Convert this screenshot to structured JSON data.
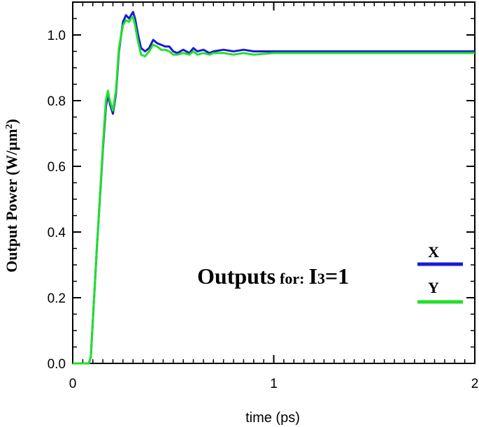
{
  "chart_data": {
    "type": "line",
    "title": "",
    "xlabel": "time (ps)",
    "ylabel_main": "Output Power (W/",
    "ylabel_unit": "µm",
    "ylabel_sup": "2",
    "ylabel_close": ")",
    "xlim": [
      0,
      2
    ],
    "ylim": [
      0,
      1.1
    ],
    "xticks": [
      "0",
      "1",
      "2"
    ],
    "yticks": [
      "0.0",
      "0.2",
      "0.4",
      "0.6",
      "0.8",
      "1.0"
    ],
    "grid": false,
    "legend_position": "right",
    "annotation": {
      "prefix": "Outputs",
      "middle": "for:",
      "var": "I",
      "sub": "3",
      "suffix": "=1"
    },
    "series": [
      {
        "name": "X",
        "color": "#1a1ad6",
        "x": [
          0,
          0.08,
          0.09,
          0.12,
          0.15,
          0.165,
          0.175,
          0.185,
          0.2,
          0.215,
          0.23,
          0.25,
          0.265,
          0.28,
          0.29,
          0.3,
          0.31,
          0.325,
          0.34,
          0.36,
          0.38,
          0.4,
          0.42,
          0.44,
          0.46,
          0.48,
          0.5,
          0.52,
          0.55,
          0.58,
          0.6,
          0.62,
          0.65,
          0.68,
          0.7,
          0.75,
          0.8,
          0.85,
          0.9,
          1.0,
          1.1,
          1.2,
          1.3,
          1.4,
          1.5,
          1.6,
          1.7,
          1.8,
          1.9,
          2.0
        ],
        "y": [
          0,
          0,
          0.02,
          0.35,
          0.65,
          0.78,
          0.82,
          0.79,
          0.76,
          0.82,
          0.95,
          1.04,
          1.06,
          1.05,
          1.06,
          1.07,
          1.05,
          1.0,
          0.96,
          0.95,
          0.96,
          0.985,
          0.975,
          0.97,
          0.965,
          0.965,
          0.95,
          0.945,
          0.955,
          0.945,
          0.96,
          0.95,
          0.955,
          0.945,
          0.95,
          0.955,
          0.95,
          0.955,
          0.95,
          0.95,
          0.95,
          0.95,
          0.95,
          0.95,
          0.95,
          0.95,
          0.95,
          0.95,
          0.95,
          0.95
        ]
      },
      {
        "name": "Y",
        "color": "#22e02a",
        "x": [
          0,
          0.08,
          0.09,
          0.12,
          0.15,
          0.165,
          0.175,
          0.185,
          0.2,
          0.215,
          0.23,
          0.25,
          0.265,
          0.28,
          0.29,
          0.3,
          0.31,
          0.325,
          0.34,
          0.36,
          0.38,
          0.4,
          0.42,
          0.44,
          0.46,
          0.48,
          0.5,
          0.52,
          0.55,
          0.58,
          0.6,
          0.62,
          0.65,
          0.68,
          0.7,
          0.75,
          0.8,
          0.85,
          0.9,
          1.0,
          1.1,
          1.2,
          1.3,
          1.4,
          1.5,
          1.6,
          1.7,
          1.8,
          1.9,
          2.0
        ],
        "y": [
          0,
          0,
          0.02,
          0.35,
          0.66,
          0.8,
          0.83,
          0.8,
          0.77,
          0.83,
          0.96,
          1.03,
          1.045,
          1.04,
          1.05,
          1.055,
          1.03,
          0.98,
          0.94,
          0.935,
          0.95,
          0.97,
          0.965,
          0.955,
          0.955,
          0.95,
          0.94,
          0.94,
          0.945,
          0.94,
          0.95,
          0.94,
          0.945,
          0.94,
          0.945,
          0.945,
          0.94,
          0.945,
          0.94,
          0.945,
          0.945,
          0.945,
          0.945,
          0.945,
          0.945,
          0.945,
          0.945,
          0.945,
          0.945,
          0.945
        ]
      }
    ]
  }
}
